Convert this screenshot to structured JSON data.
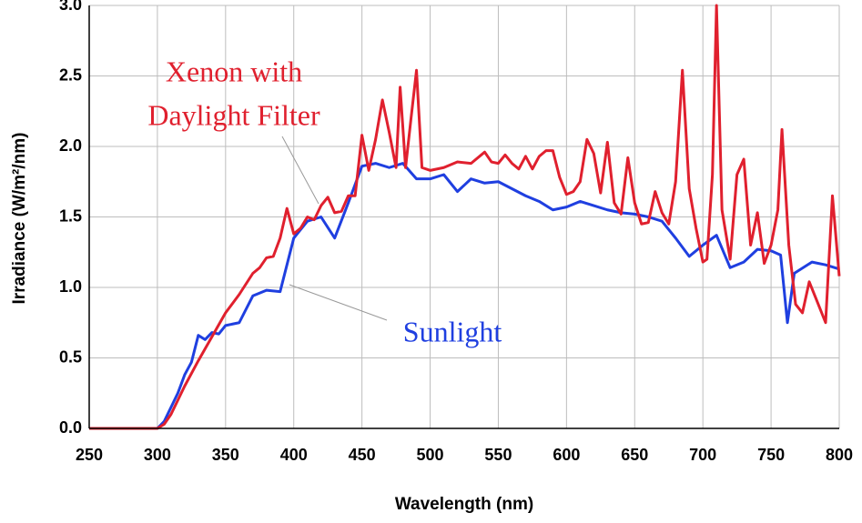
{
  "chart_data": {
    "type": "line",
    "x_label": "Wavelength (nm)",
    "y_label": "Irradiance (W/m²/nm)",
    "annotations": [
      "Xenon with",
      "Daylight Filter",
      "Sunlight"
    ],
    "xlim": [
      250,
      800
    ],
    "xticks": [
      250,
      300,
      350,
      400,
      450,
      500,
      550,
      600,
      650,
      700,
      750,
      800
    ],
    "ylim": [
      0,
      3
    ],
    "yticks": [
      {
        "value": 0,
        "label": "0.0"
      },
      0.5,
      {
        "value": 1,
        "label": "1.0"
      },
      1.5,
      {
        "value": 2,
        "label": "2.0"
      },
      2.5,
      {
        "value": 3,
        "label": "3.0"
      }
    ],
    "grid": true,
    "series": [
      {
        "name": "Sunlight",
        "color": "#1f3fe0",
        "x": [
          250,
          300,
          305,
          310,
          315,
          320,
          325,
          330,
          335,
          340,
          345,
          350,
          360,
          370,
          380,
          390,
          400,
          410,
          420,
          430,
          440,
          450,
          460,
          470,
          480,
          490,
          500,
          510,
          520,
          530,
          540,
          550,
          560,
          570,
          580,
          590,
          600,
          610,
          620,
          630,
          640,
          650,
          660,
          670,
          680,
          690,
          700,
          710,
          720,
          730,
          740,
          750,
          757,
          762,
          767,
          780,
          790,
          800
        ],
        "values": [
          0,
          0,
          0.05,
          0.15,
          0.25,
          0.38,
          0.47,
          0.66,
          0.63,
          0.68,
          0.67,
          0.73,
          0.75,
          0.94,
          0.98,
          0.97,
          1.35,
          1.47,
          1.5,
          1.35,
          1.6,
          1.86,
          1.88,
          1.85,
          1.88,
          1.77,
          1.77,
          1.8,
          1.68,
          1.77,
          1.74,
          1.75,
          1.7,
          1.65,
          1.61,
          1.55,
          1.57,
          1.61,
          1.58,
          1.55,
          1.53,
          1.52,
          1.5,
          1.47,
          1.35,
          1.22,
          1.3,
          1.37,
          1.14,
          1.18,
          1.27,
          1.26,
          1.23,
          0.75,
          1.1,
          1.18,
          1.16,
          1.13
        ]
      },
      {
        "name": "Xenon with Daylight Filter",
        "color": "#e0202e",
        "x": [
          250,
          300,
          305,
          310,
          320,
          330,
          340,
          350,
          360,
          370,
          375,
          380,
          385,
          390,
          395,
          400,
          405,
          410,
          415,
          420,
          425,
          430,
          435,
          440,
          445,
          450,
          455,
          460,
          465,
          470,
          475,
          478,
          482,
          486,
          490,
          494,
          500,
          510,
          520,
          530,
          540,
          545,
          550,
          555,
          560,
          565,
          570,
          575,
          580,
          585,
          590,
          595,
          600,
          605,
          610,
          615,
          620,
          625,
          630,
          635,
          640,
          645,
          650,
          655,
          660,
          665,
          670,
          675,
          680,
          685,
          690,
          695,
          700,
          703,
          707,
          710,
          714,
          720,
          725,
          730,
          735,
          740,
          745,
          750,
          755,
          758,
          763,
          768,
          773,
          778,
          783,
          790,
          795,
          800
        ],
        "values": [
          0,
          0,
          0.03,
          0.1,
          0.3,
          0.48,
          0.65,
          0.82,
          0.95,
          1.1,
          1.14,
          1.21,
          1.22,
          1.35,
          1.56,
          1.38,
          1.42,
          1.5,
          1.48,
          1.58,
          1.64,
          1.53,
          1.54,
          1.65,
          1.65,
          2.08,
          1.83,
          2.05,
          2.33,
          2.1,
          1.85,
          2.42,
          1.85,
          2.2,
          2.54,
          1.85,
          1.83,
          1.85,
          1.89,
          1.88,
          1.96,
          1.89,
          1.88,
          1.94,
          1.88,
          1.84,
          1.93,
          1.84,
          1.93,
          1.97,
          1.97,
          1.78,
          1.66,
          1.68,
          1.75,
          2.05,
          1.95,
          1.67,
          2.03,
          1.6,
          1.52,
          1.92,
          1.6,
          1.45,
          1.46,
          1.68,
          1.53,
          1.45,
          1.75,
          2.54,
          1.7,
          1.42,
          1.18,
          1.2,
          1.8,
          3.0,
          1.55,
          1.2,
          1.8,
          1.91,
          1.3,
          1.53,
          1.17,
          1.3,
          1.55,
          2.12,
          1.3,
          0.88,
          0.82,
          1.04,
          0.92,
          0.75,
          1.65,
          1.08
        ]
      }
    ]
  }
}
